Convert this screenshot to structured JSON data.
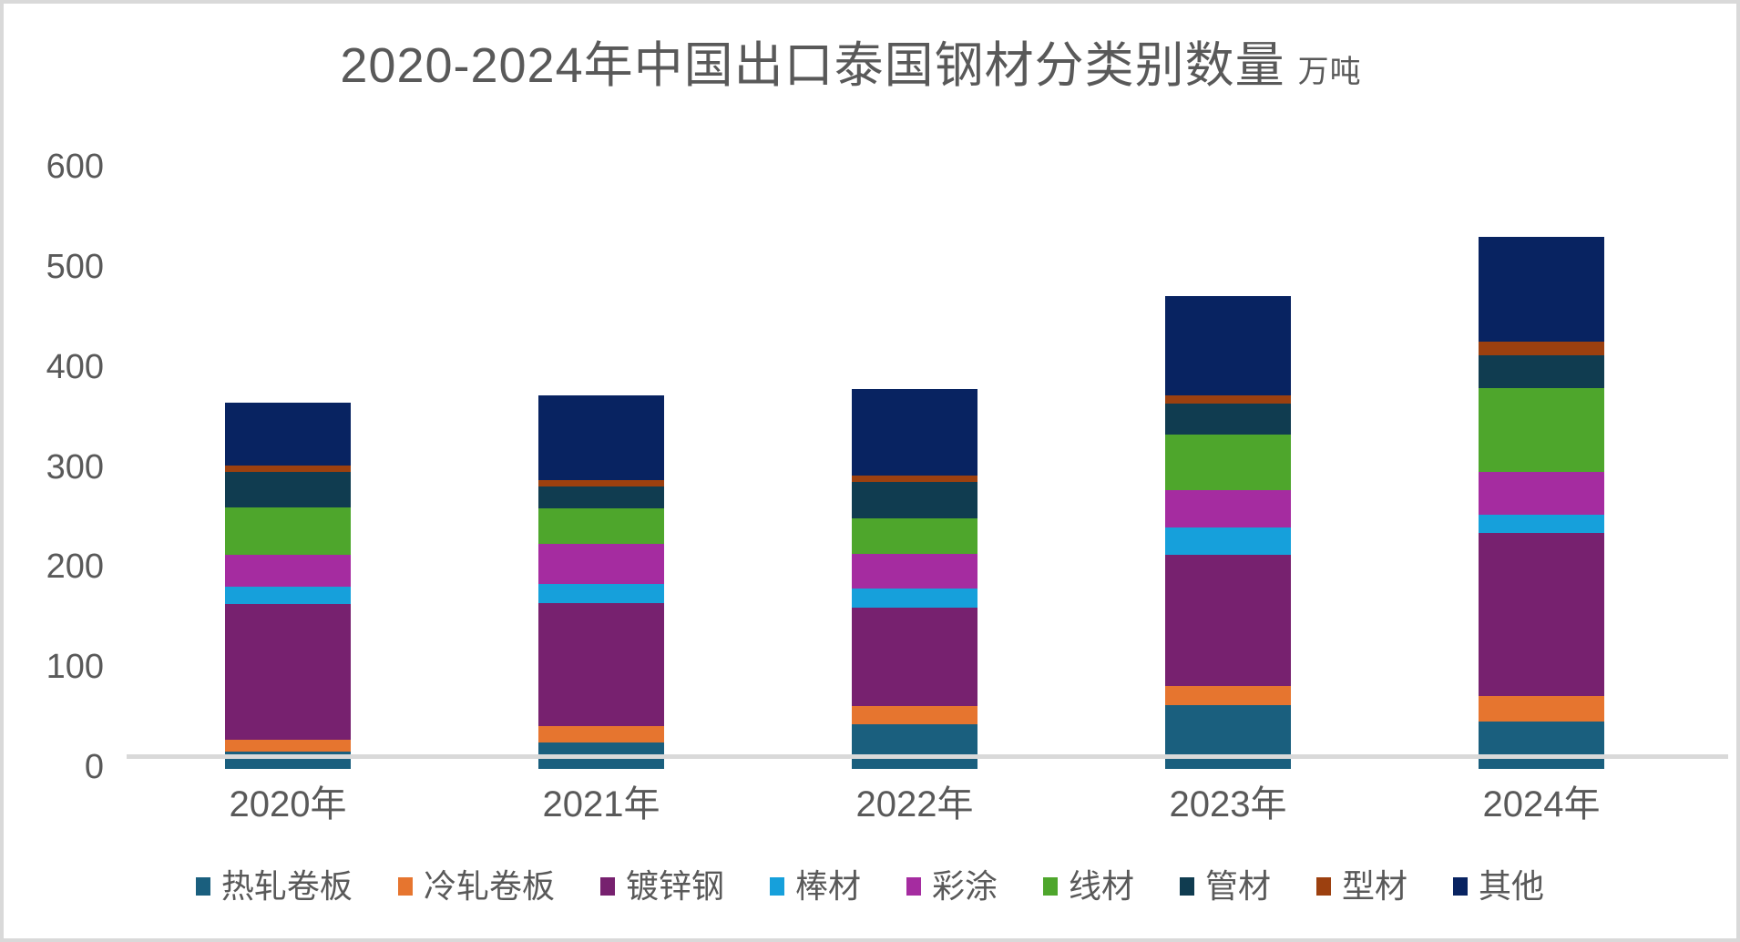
{
  "title": {
    "main": "2020-2024年中国出口泰国钢材分类别数量",
    "unit": "万吨"
  },
  "colors": {
    "text": "#595959",
    "axis_line": "#d9d9d9",
    "frame_border": "#d9d9d9",
    "background": "#ffffff"
  },
  "chart_data": {
    "type": "bar",
    "stacked": true,
    "title": "2020-2024年中国出口泰国钢材分类别数量",
    "unit_label": "万吨",
    "categories": [
      "2020年",
      "2021年",
      "2022年",
      "2023年",
      "2024年"
    ],
    "series": [
      {
        "name": "热轧卷板",
        "color": "#1A5F7E",
        "values": [
          17,
          26,
          45,
          64,
          47
        ]
      },
      {
        "name": "冷轧卷板",
        "color": "#E6752F",
        "values": [
          12,
          17,
          18,
          19,
          26
        ]
      },
      {
        "name": "镀锌钢",
        "color": "#77216F",
        "values": [
          136,
          123,
          98,
          131,
          163
        ]
      },
      {
        "name": "棒材",
        "color": "#16A0DB",
        "values": [
          17,
          19,
          19,
          27,
          18
        ]
      },
      {
        "name": "彩涂",
        "color": "#A52CA0",
        "values": [
          32,
          40,
          35,
          38,
          43
        ]
      },
      {
        "name": "线材",
        "color": "#4EA62C",
        "values": [
          47,
          35,
          35,
          55,
          84
        ]
      },
      {
        "name": "管材",
        "color": "#103C50",
        "values": [
          36,
          22,
          37,
          31,
          32
        ]
      },
      {
        "name": "型材",
        "color": "#9C400F",
        "values": [
          6,
          7,
          6,
          8,
          14
        ]
      },
      {
        "name": "其他",
        "color": "#082361",
        "values": [
          63,
          84,
          87,
          100,
          105
        ]
      }
    ],
    "totals": [
      366,
      373,
      380,
      473,
      532
    ],
    "ylim": [
      0,
      600
    ],
    "yticks": [
      0,
      100,
      200,
      300,
      400,
      500,
      600
    ],
    "grid": false,
    "legend_position": "bottom"
  }
}
